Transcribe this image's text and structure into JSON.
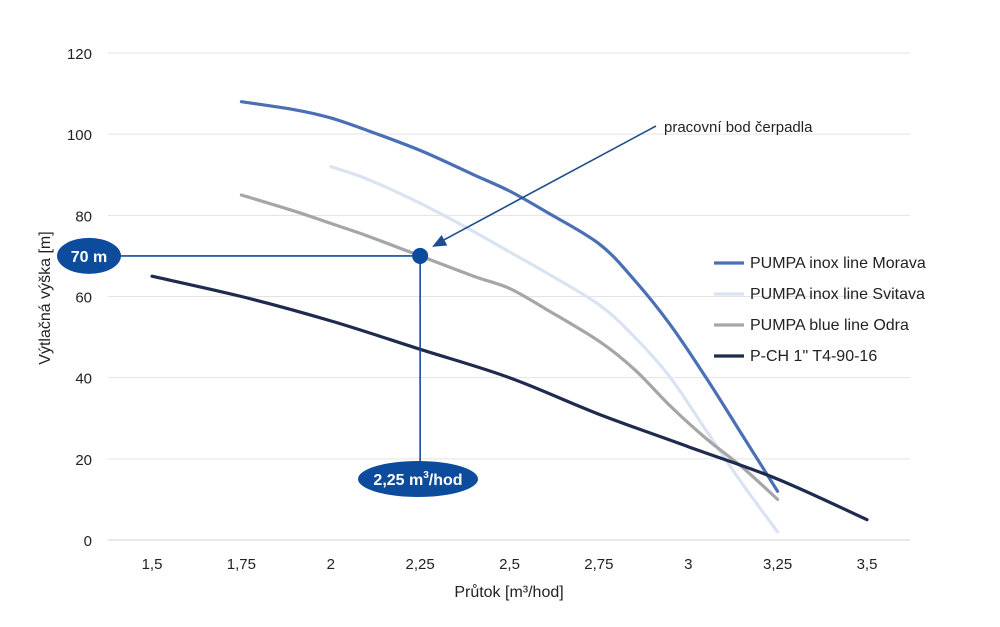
{
  "chart_data": {
    "type": "line",
    "xlabel": "Průtok [m³/hod]",
    "ylabel": "Výtlačná výška [m]",
    "x_ticks": [
      "1,5",
      "1,75",
      "2",
      "2,25",
      "2,5",
      "2,75",
      "3",
      "3,25",
      "3,5"
    ],
    "x_tick_values": [
      1.5,
      1.75,
      2,
      2.25,
      2.5,
      2.75,
      3,
      3.25,
      3.5
    ],
    "y_ticks": [
      "0",
      "20",
      "40",
      "60",
      "80",
      "100",
      "120"
    ],
    "y_tick_values": [
      0,
      20,
      40,
      60,
      80,
      100,
      120
    ],
    "xlim": [
      1.5,
      3.5
    ],
    "ylim": [
      0,
      120
    ],
    "grid": true,
    "legend_position": "right",
    "series": [
      {
        "name": "PUMPA inox line Morava",
        "color": "#4a6fb5",
        "x": [
          1.75,
          1.9,
          2.0,
          2.1,
          2.25,
          2.4,
          2.5,
          2.6,
          2.75,
          2.85,
          2.95,
          3.05,
          3.15,
          3.25
        ],
        "y": [
          108,
          106,
          104,
          101,
          96,
          90,
          86,
          81,
          73,
          64,
          53,
          40,
          26,
          12
        ]
      },
      {
        "name": "PUMPA inox line Svitava",
        "color": "#d9e3f2",
        "x": [
          2.0,
          2.1,
          2.25,
          2.4,
          2.5,
          2.6,
          2.75,
          2.85,
          2.95,
          3.05,
          3.15,
          3.25
        ],
        "y": [
          92,
          89,
          83,
          76,
          71,
          66,
          58,
          50,
          40,
          27,
          14,
          2
        ]
      },
      {
        "name": "PUMPA blue line Odra",
        "color": "#a6a6a6",
        "x": [
          1.75,
          1.9,
          2.0,
          2.1,
          2.25,
          2.4,
          2.5,
          2.6,
          2.75,
          2.85,
          2.95,
          3.05,
          3.15,
          3.25
        ],
        "y": [
          85,
          81,
          78,
          75,
          70,
          65,
          62,
          57,
          49,
          42,
          33,
          25,
          18,
          10
        ]
      },
      {
        "name": "P-CH 1\" T4-90-16",
        "color": "#1e2b4f",
        "x": [
          1.5,
          1.75,
          2.0,
          2.25,
          2.5,
          2.75,
          3.0,
          3.25,
          3.5
        ],
        "y": [
          65,
          60,
          54,
          47,
          40,
          31,
          23,
          15,
          5
        ]
      }
    ],
    "annotations": {
      "operating_point": {
        "x": 2.25,
        "y": 70,
        "color": "#0d4c9c"
      },
      "y_badge": "70 m",
      "x_badge_main": "2,25 m",
      "x_badge_sup": "3",
      "x_badge_tail": "/hod",
      "callout": "pracovní bod čerpadla",
      "callout_color": "#1f4e8c"
    }
  }
}
